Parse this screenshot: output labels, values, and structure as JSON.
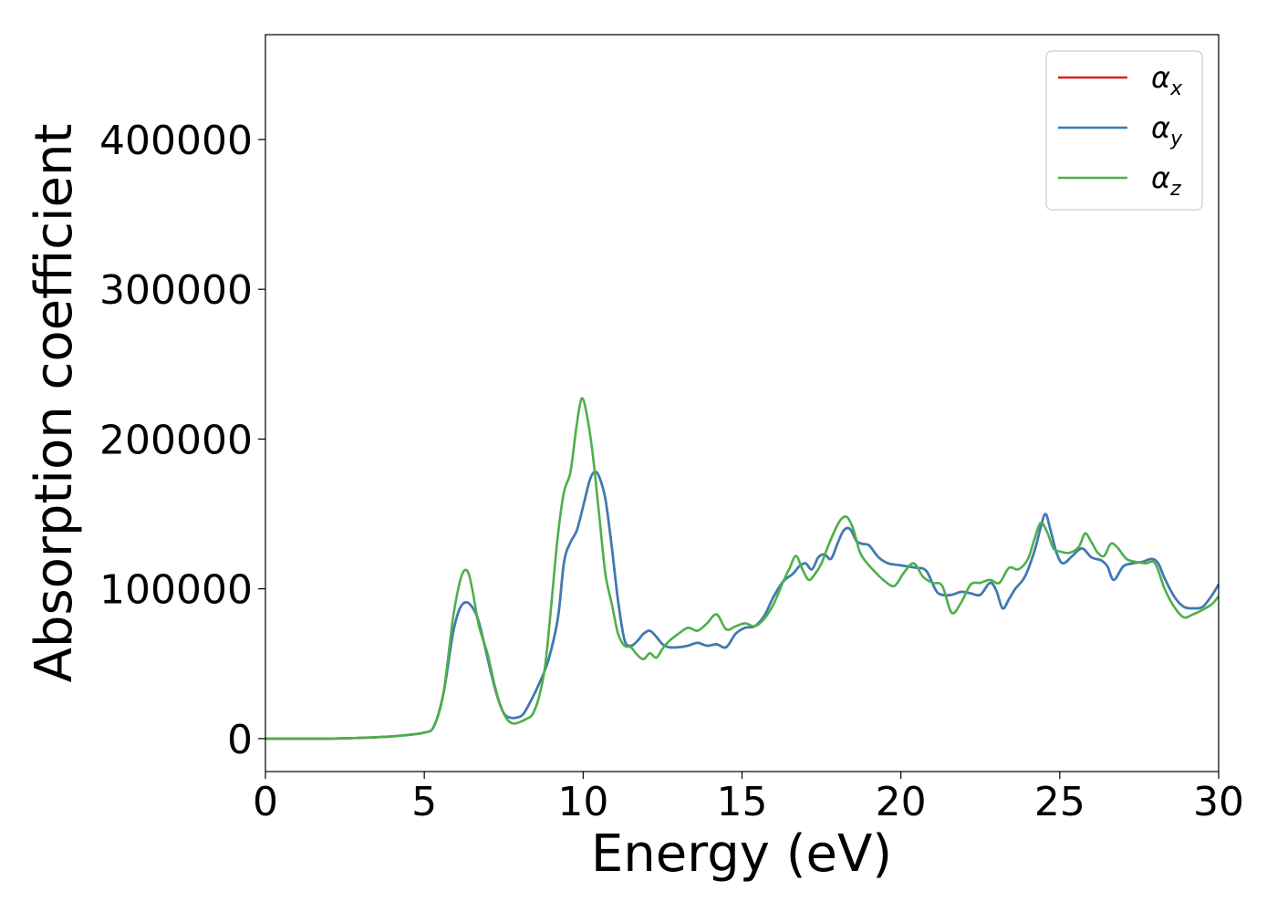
{
  "chart_data": {
    "type": "line",
    "title": "",
    "xlabel": "Energy (eV)",
    "ylabel": "Absorption coefficient",
    "xlim": [
      0,
      30
    ],
    "ylim": [
      -22000,
      470000
    ],
    "xticks": [
      0,
      5,
      10,
      15,
      20,
      25,
      30
    ],
    "yticks": [
      0,
      100000,
      200000,
      300000,
      400000
    ],
    "grid": false,
    "legend": {
      "position": "top-right"
    },
    "series": [
      {
        "name": "αx",
        "legend_main": "α",
        "legend_sub": "x",
        "color": "#e41a1c",
        "x": [
          0,
          0.5,
          1,
          2,
          3,
          4,
          4.5,
          5,
          5.3,
          5.6,
          5.9,
          6.1,
          6.3,
          6.5,
          6.7,
          6.9,
          7.1,
          7.3,
          7.5,
          7.7,
          7.9,
          8.1,
          8.3,
          8.6,
          8.9,
          9.2,
          9.4,
          9.6,
          9.8,
          10.0,
          10.2,
          10.35,
          10.5,
          10.7,
          10.9,
          11.1,
          11.3,
          11.5,
          11.7,
          11.9,
          12.1,
          12.3,
          12.5,
          12.7,
          13.0,
          13.3,
          13.6,
          13.9,
          14.2,
          14.5,
          14.8,
          15.1,
          15.4,
          15.7,
          16.0,
          16.3,
          16.6,
          16.8,
          17.0,
          17.2,
          17.4,
          17.6,
          17.8,
          18.0,
          18.2,
          18.4,
          18.6,
          18.8,
          19.0,
          19.3,
          19.6,
          19.9,
          20.2,
          20.5,
          20.8,
          21.1,
          21.3,
          21.6,
          21.9,
          22.2,
          22.5,
          22.8,
          23.0,
          23.2,
          23.4,
          23.6,
          23.9,
          24.2,
          24.4,
          24.55,
          24.7,
          24.9,
          25.1,
          25.4,
          25.7,
          26.0,
          26.3,
          26.5,
          26.7,
          27.0,
          27.3,
          27.6,
          27.9,
          28.1,
          28.3,
          28.6,
          28.9,
          29.2,
          29.5,
          29.8,
          30.0
        ],
        "y": [
          0,
          0,
          0,
          0,
          500,
          1500,
          2500,
          4000,
          8000,
          30000,
          70000,
          86000,
          91000,
          88000,
          79000,
          62000,
          44000,
          28000,
          17000,
          14000,
          14000,
          16000,
          23000,
          36000,
          52000,
          80000,
          118000,
          131000,
          139000,
          155000,
          172000,
          178000,
          175000,
          160000,
          128000,
          92000,
          66000,
          62000,
          65000,
          70000,
          72000,
          68000,
          63000,
          61000,
          61000,
          62000,
          64000,
          62000,
          63000,
          61000,
          70000,
          74000,
          75000,
          82000,
          95000,
          105000,
          110000,
          115000,
          117000,
          113000,
          121000,
          123000,
          120000,
          130000,
          139000,
          140000,
          132000,
          130000,
          129000,
          121000,
          117000,
          116000,
          115000,
          114000,
          112000,
          99000,
          96000,
          96000,
          98000,
          97000,
          96000,
          104000,
          99000,
          87000,
          93000,
          100000,
          108000,
          125000,
          141000,
          150000,
          140000,
          124000,
          117000,
          122000,
          127000,
          121000,
          119000,
          115000,
          106000,
          115000,
          117000,
          118000,
          120000,
          117000,
          107000,
          95000,
          88000,
          87000,
          88000,
          96000,
          103000
        ]
      },
      {
        "name": "αy",
        "legend_main": "α",
        "legend_sub": "y",
        "color": "#377eb8",
        "x": [
          0,
          0.5,
          1,
          2,
          3,
          4,
          4.5,
          5,
          5.3,
          5.6,
          5.9,
          6.1,
          6.3,
          6.5,
          6.7,
          6.9,
          7.1,
          7.3,
          7.5,
          7.7,
          7.9,
          8.1,
          8.3,
          8.6,
          8.9,
          9.2,
          9.4,
          9.6,
          9.8,
          10.0,
          10.2,
          10.35,
          10.5,
          10.7,
          10.9,
          11.1,
          11.3,
          11.5,
          11.7,
          11.9,
          12.1,
          12.3,
          12.5,
          12.7,
          13.0,
          13.3,
          13.6,
          13.9,
          14.2,
          14.5,
          14.8,
          15.1,
          15.4,
          15.7,
          16.0,
          16.3,
          16.6,
          16.8,
          17.0,
          17.2,
          17.4,
          17.6,
          17.8,
          18.0,
          18.2,
          18.4,
          18.6,
          18.8,
          19.0,
          19.3,
          19.6,
          19.9,
          20.2,
          20.5,
          20.8,
          21.1,
          21.3,
          21.6,
          21.9,
          22.2,
          22.5,
          22.8,
          23.0,
          23.2,
          23.4,
          23.6,
          23.9,
          24.2,
          24.4,
          24.55,
          24.7,
          24.9,
          25.1,
          25.4,
          25.7,
          26.0,
          26.3,
          26.5,
          26.7,
          27.0,
          27.3,
          27.6,
          27.9,
          28.1,
          28.3,
          28.6,
          28.9,
          29.2,
          29.5,
          29.8,
          30.0
        ],
        "y": [
          0,
          0,
          0,
          0,
          500,
          1500,
          2500,
          4000,
          8000,
          30000,
          70000,
          86000,
          91000,
          88000,
          79000,
          62000,
          44000,
          28000,
          17000,
          14000,
          14000,
          16000,
          23000,
          36000,
          52000,
          80000,
          118000,
          131000,
          139000,
          155000,
          172000,
          178000,
          175000,
          160000,
          128000,
          92000,
          66000,
          62000,
          65000,
          70000,
          72000,
          68000,
          63000,
          61000,
          61000,
          62000,
          64000,
          62000,
          63000,
          61000,
          70000,
          74000,
          75000,
          82000,
          95000,
          105000,
          110000,
          115000,
          117000,
          113000,
          121000,
          123000,
          120000,
          130000,
          139000,
          140000,
          132000,
          130000,
          129000,
          121000,
          117000,
          116000,
          115000,
          114000,
          112000,
          99000,
          96000,
          96000,
          98000,
          97000,
          96000,
          104000,
          99000,
          87000,
          93000,
          100000,
          108000,
          125000,
          141000,
          150000,
          140000,
          124000,
          117000,
          122000,
          127000,
          121000,
          119000,
          115000,
          106000,
          115000,
          117000,
          118000,
          120000,
          117000,
          107000,
          95000,
          88000,
          87000,
          88000,
          96000,
          103000
        ]
      },
      {
        "name": "αz",
        "legend_main": "α",
        "legend_sub": "z",
        "color": "#4daf4a",
        "x": [
          0,
          0.5,
          1,
          2,
          3,
          4,
          4.5,
          5,
          5.3,
          5.6,
          5.9,
          6.1,
          6.25,
          6.4,
          6.55,
          6.7,
          6.85,
          7.0,
          7.2,
          7.4,
          7.6,
          7.8,
          8.0,
          8.2,
          8.4,
          8.6,
          8.8,
          9.0,
          9.2,
          9.4,
          9.6,
          9.8,
          9.95,
          10.1,
          10.3,
          10.5,
          10.7,
          10.9,
          11.1,
          11.3,
          11.5,
          11.7,
          11.9,
          12.1,
          12.3,
          12.5,
          12.7,
          13.0,
          13.3,
          13.6,
          13.9,
          14.2,
          14.5,
          14.8,
          15.1,
          15.4,
          15.7,
          16.0,
          16.3,
          16.5,
          16.7,
          16.9,
          17.1,
          17.3,
          17.5,
          17.7,
          17.9,
          18.1,
          18.3,
          18.5,
          18.7,
          18.9,
          19.2,
          19.5,
          19.8,
          20.1,
          20.4,
          20.7,
          21.0,
          21.3,
          21.6,
          21.9,
          22.2,
          22.5,
          22.8,
          23.1,
          23.4,
          23.7,
          24.0,
          24.2,
          24.4,
          24.6,
          24.8,
          25.0,
          25.3,
          25.6,
          25.8,
          26.0,
          26.2,
          26.4,
          26.6,
          26.8,
          27.1,
          27.4,
          27.7,
          28.0,
          28.3,
          28.6,
          28.9,
          29.2,
          29.5,
          29.8,
          30.0
        ],
        "y": [
          0,
          0,
          0,
          0,
          500,
          1500,
          2500,
          4000,
          8000,
          30000,
          80000,
          103000,
          112000,
          110000,
          95000,
          77000,
          66000,
          56000,
          37000,
          22000,
          13000,
          10000,
          11000,
          13000,
          16000,
          27000,
          48000,
          90000,
          135000,
          165000,
          178000,
          210000,
          227000,
          218000,
          190000,
          150000,
          110000,
          90000,
          70000,
          62000,
          61000,
          56000,
          53000,
          57000,
          54000,
          60000,
          65000,
          70000,
          74000,
          72000,
          77000,
          83000,
          73000,
          75000,
          77000,
          75000,
          80000,
          90000,
          105000,
          114000,
          122000,
          113000,
          106000,
          110000,
          117000,
          128000,
          138000,
          146000,
          148000,
          140000,
          125000,
          118000,
          111000,
          105000,
          102000,
          111000,
          117000,
          108000,
          104000,
          102000,
          84000,
          91000,
          103000,
          104000,
          106000,
          104000,
          114000,
          113000,
          120000,
          133000,
          144000,
          138000,
          127000,
          125000,
          124000,
          128000,
          137000,
          131000,
          124000,
          122000,
          130000,
          128000,
          120000,
          118000,
          117000,
          117000,
          100000,
          88000,
          81000,
          83000,
          86000,
          90000,
          95000
        ]
      }
    ]
  }
}
